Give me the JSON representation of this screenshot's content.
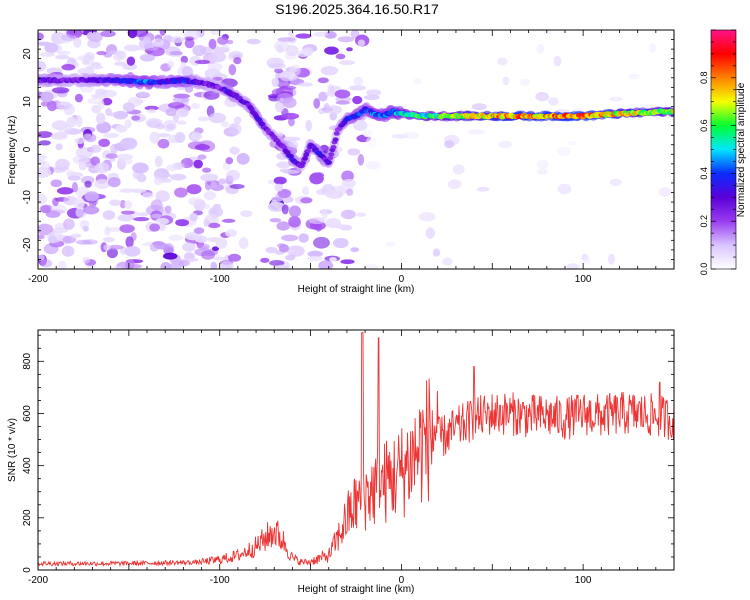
{
  "figure_title": "S196.2025.364.16.50.R17",
  "chart_data": [
    {
      "type": "heatmap",
      "title": "",
      "xlabel": "Height of straight line (km)",
      "ylabel": "Frequency (Hz)",
      "xlim": [
        -200,
        150
      ],
      "ylim": [
        -25,
        25
      ],
      "x_ticks": [
        -200,
        -100,
        0,
        100
      ],
      "y_ticks": [
        -20,
        -10,
        0,
        10,
        20
      ],
      "colorbar": {
        "label": "Normalized spectral amplitude",
        "range": [
          0,
          1
        ],
        "ticks": [
          0.0,
          0.2,
          0.4,
          0.6,
          0.8
        ],
        "colormap": [
          "#ffffff",
          "#d9c4ff",
          "#9a3cf0",
          "#5a00d8",
          "#0a2cff",
          "#00e6ff",
          "#00ff30",
          "#f5ff00",
          "#ff8000",
          "#ff0000",
          "#ff1488"
        ]
      },
      "ridge": {
        "x": [
          -200,
          -190,
          -180,
          -170,
          -160,
          -150,
          -140,
          -130,
          -120,
          -110,
          -100,
          -95,
          -90,
          -85,
          -80,
          -75,
          -70,
          -65,
          -60,
          -55,
          -50,
          -45,
          -40,
          -35,
          -30,
          -25,
          -20,
          -15,
          -10,
          -5,
          0,
          10,
          20,
          30,
          40,
          60,
          80,
          100,
          120,
          150
        ],
        "freq": [
          14.5,
          14.5,
          14.5,
          14.5,
          14.5,
          14.3,
          14.0,
          14.2,
          14.5,
          14.0,
          13.0,
          12.0,
          11.0,
          9.5,
          7.0,
          4.5,
          2.5,
          0.5,
          -2.0,
          -3.5,
          1.0,
          -1.0,
          -3.0,
          4.0,
          6.5,
          7.0,
          8.5,
          7.5,
          7.0,
          8.0,
          7.5,
          7.0,
          7.0,
          7.0,
          7.0,
          7.0,
          7.0,
          7.0,
          7.5,
          8.0
        ],
        "amplitude": [
          0.3,
          0.3,
          0.25,
          0.3,
          0.35,
          0.4,
          0.45,
          0.35,
          0.4,
          0.3,
          0.25,
          0.35,
          0.3,
          0.3,
          0.35,
          0.3,
          0.25,
          0.3,
          0.35,
          0.25,
          0.3,
          0.35,
          0.3,
          0.25,
          0.35,
          0.4,
          0.4,
          0.45,
          0.45,
          0.5,
          0.55,
          0.6,
          0.6,
          0.7,
          0.75,
          0.85,
          0.85,
          0.9,
          0.75,
          0.7
        ]
      }
    },
    {
      "type": "line",
      "title": "",
      "xlabel": "Height of straight line (km)",
      "ylabel": "SNR (10 * v/v)",
      "xlim": [
        -200,
        150
      ],
      "ylim": [
        0,
        920
      ],
      "x_ticks": [
        -200,
        -100,
        0,
        100
      ],
      "y_ticks": [
        0,
        200,
        400,
        600,
        800
      ],
      "line_color": "#ee3333",
      "trend": {
        "x": [
          -200,
          -150,
          -110,
          -100,
          -90,
          -80,
          -75,
          -70,
          -65,
          -60,
          -55,
          -50,
          -40,
          -35,
          -30,
          -25,
          -20,
          -15,
          -10,
          -5,
          0,
          10,
          20,
          30,
          40,
          50,
          60,
          70,
          80,
          90,
          100,
          110,
          120,
          130,
          140,
          150
        ],
        "snr": [
          25,
          25,
          30,
          40,
          55,
          90,
          120,
          150,
          110,
          45,
          30,
          30,
          50,
          110,
          180,
          230,
          260,
          280,
          300,
          320,
          340,
          420,
          500,
          540,
          580,
          600,
          600,
          590,
          590,
          580,
          600,
          590,
          600,
          600,
          590,
          580
        ]
      },
      "peaks": [
        {
          "x": -21.5,
          "snr": 910
        },
        {
          "x": -12.5,
          "snr": 890
        },
        {
          "x": 40,
          "snr": 780
        },
        {
          "x": 142,
          "snr": 720
        }
      ]
    }
  ]
}
